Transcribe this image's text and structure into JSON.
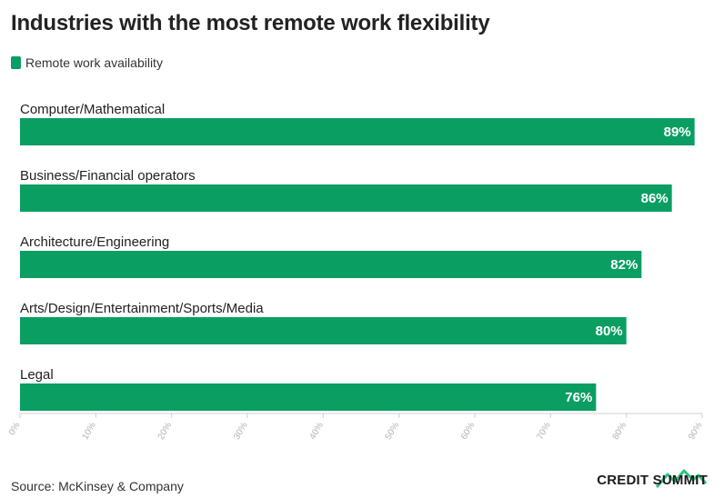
{
  "title": "Industries with the most remote work flexibility",
  "legend": {
    "label": "Remote work availability",
    "color": "#0b9e63"
  },
  "source": "Source: McKinsey & Company",
  "brand": {
    "text": "CREDIT SUMMIT",
    "accent": "#2ec27e"
  },
  "chart_data": {
    "type": "bar",
    "orientation": "horizontal",
    "categories": [
      "Computer/Mathematical",
      "Business/Financial operators",
      "Architecture/Engineering",
      "Arts/Design/Entertainment/Sports/Media",
      "Legal"
    ],
    "series": [
      {
        "name": "Remote work availability",
        "values": [
          89,
          86,
          82,
          80,
          76
        ],
        "color": "#0b9e63"
      }
    ],
    "data_labels": [
      "89%",
      "86%",
      "82%",
      "80%",
      "76%"
    ],
    "xlim": [
      0,
      90
    ],
    "xticks": [
      "0%",
      "10%",
      "20%",
      "30%",
      "40%",
      "50%",
      "60%",
      "70%",
      "80%",
      "90%"
    ],
    "grid": false,
    "legend_position": "top-left"
  }
}
